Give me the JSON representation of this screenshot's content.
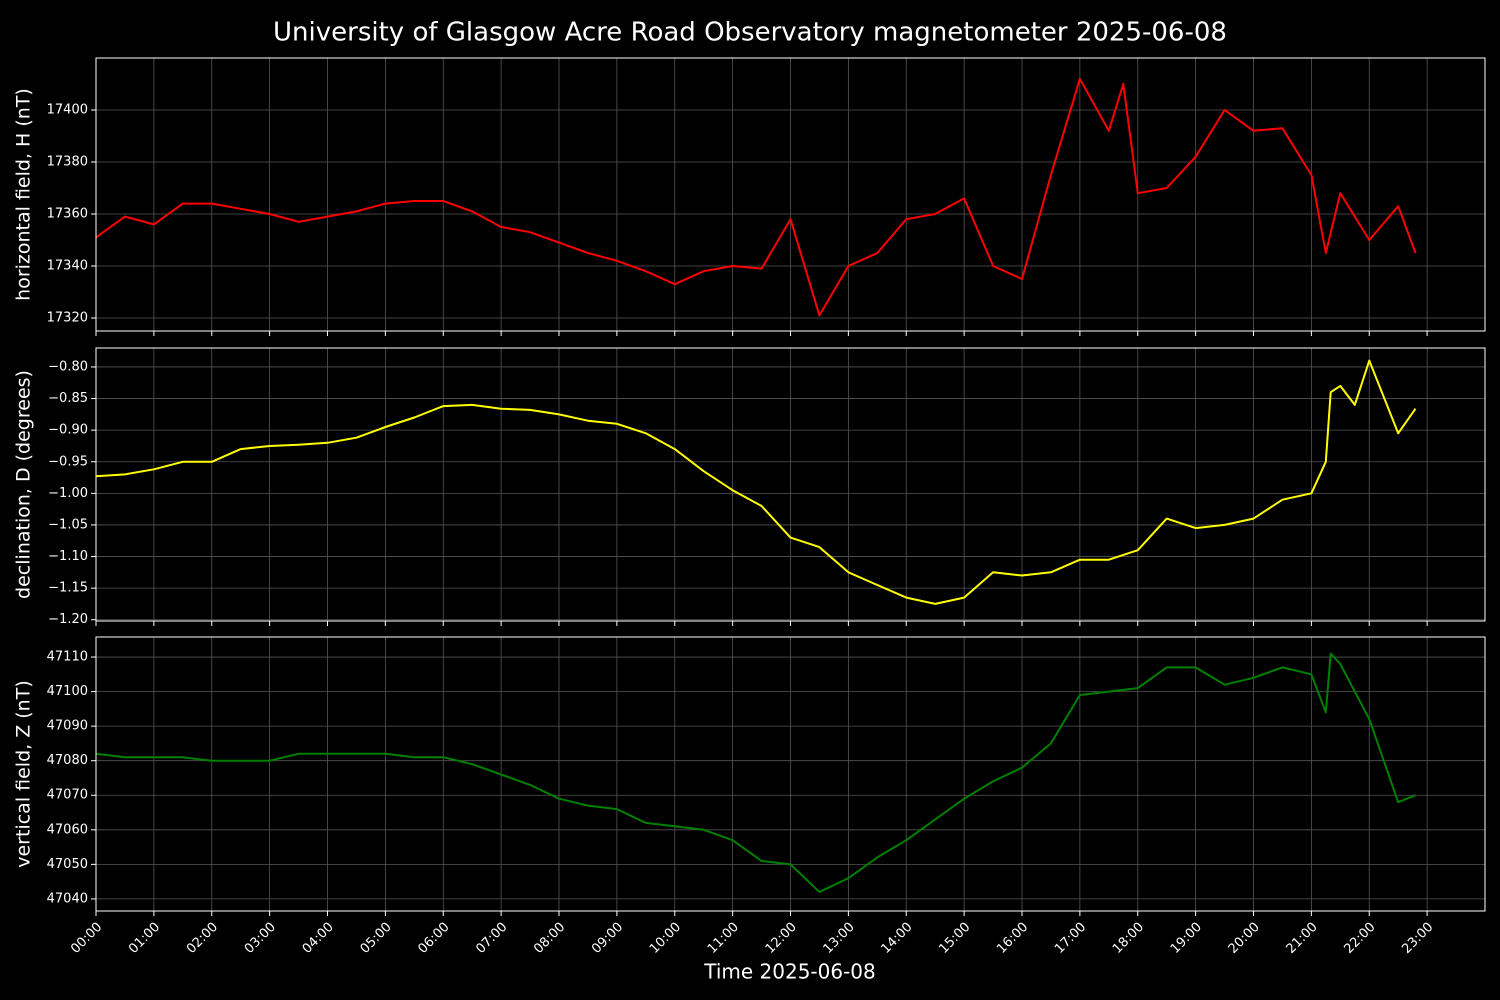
{
  "chart_data": [
    {
      "type": "line",
      "title": "University of Glasgow Acre Road Observatory magnetometer 2025-06-08",
      "ylabel": "horizontal field, H (nT)",
      "color": "#ff0000",
      "grid": true,
      "xlim": [
        "00:00",
        "24:00"
      ],
      "ylim": [
        17315,
        17420
      ],
      "yticks": [
        17320,
        17340,
        17360,
        17380,
        17400
      ],
      "x": [
        "00:00",
        "00:30",
        "01:00",
        "01:30",
        "02:00",
        "02:30",
        "03:00",
        "03:30",
        "04:00",
        "04:30",
        "05:00",
        "05:30",
        "06:00",
        "06:30",
        "07:00",
        "07:30",
        "08:00",
        "08:30",
        "09:00",
        "09:30",
        "10:00",
        "10:30",
        "11:00",
        "11:30",
        "12:00",
        "12:30",
        "13:00",
        "13:30",
        "14:00",
        "14:30",
        "15:00",
        "15:30",
        "16:00",
        "16:30",
        "17:00",
        "17:30",
        "17:45",
        "18:00",
        "18:30",
        "19:00",
        "19:30",
        "20:00",
        "20:30",
        "21:00",
        "21:15",
        "21:30",
        "22:00",
        "22:30",
        "22:48"
      ],
      "values": [
        17351,
        17359,
        17356,
        17364,
        17364,
        17362,
        17360,
        17357,
        17359,
        17361,
        17364,
        17365,
        17365,
        17361,
        17355,
        17353,
        17349,
        17345,
        17342,
        17338,
        17333,
        17338,
        17340,
        17339,
        17358,
        17321,
        17340,
        17345,
        17358,
        17360,
        17366,
        17340,
        17335,
        17375,
        17412,
        17392,
        17410,
        17368,
        17370,
        17382,
        17400,
        17392,
        17393,
        17375,
        17345,
        17368,
        17350,
        17363,
        17345
      ]
    },
    {
      "type": "line",
      "ylabel": "declination, D (degrees)",
      "color": "#ffff00",
      "grid": true,
      "xlim": [
        "00:00",
        "24:00"
      ],
      "ylim": [
        -1.202,
        -0.77
      ],
      "yticks": [
        {
          "value": -1.2,
          "label": "−1.20"
        },
        {
          "value": -1.15,
          "label": "−1.15"
        },
        {
          "value": -1.1,
          "label": "−1.10"
        },
        {
          "value": -1.05,
          "label": "−1.05"
        },
        {
          "value": -1.0,
          "label": "−1.00"
        },
        {
          "value": -0.95,
          "label": "−0.95"
        },
        {
          "value": -0.9,
          "label": "−0.90"
        },
        {
          "value": -0.85,
          "label": "−0.85"
        },
        {
          "value": -0.8,
          "label": "−0.80"
        }
      ],
      "x": [
        "00:00",
        "00:30",
        "01:00",
        "01:30",
        "02:00",
        "02:30",
        "03:00",
        "03:30",
        "04:00",
        "04:30",
        "05:00",
        "05:30",
        "06:00",
        "06:30",
        "07:00",
        "07:30",
        "08:00",
        "08:30",
        "09:00",
        "09:30",
        "10:00",
        "10:30",
        "11:00",
        "11:30",
        "12:00",
        "12:30",
        "13:00",
        "13:30",
        "14:00",
        "14:30",
        "15:00",
        "15:30",
        "16:00",
        "16:30",
        "17:00",
        "17:30",
        "18:00",
        "18:30",
        "19:00",
        "19:30",
        "20:00",
        "20:30",
        "21:00",
        "21:15",
        "21:20",
        "21:30",
        "21:45",
        "22:00",
        "22:30",
        "22:48"
      ],
      "values": [
        -0.973,
        -0.97,
        -0.962,
        -0.95,
        -0.95,
        -0.93,
        -0.925,
        -0.923,
        -0.92,
        -0.912,
        -0.895,
        -0.88,
        -0.862,
        -0.86,
        -0.866,
        -0.868,
        -0.875,
        -0.885,
        -0.89,
        -0.905,
        -0.93,
        -0.965,
        -0.995,
        -1.02,
        -1.07,
        -1.085,
        -1.125,
        -1.145,
        -1.165,
        -1.175,
        -1.165,
        -1.125,
        -1.13,
        -1.125,
        -1.105,
        -1.105,
        -1.09,
        -1.04,
        -1.055,
        -1.05,
        -1.04,
        -1.01,
        -1.0,
        -0.95,
        -0.84,
        -0.83,
        -0.86,
        -0.79,
        -0.905,
        -0.866
      ]
    },
    {
      "type": "line",
      "ylabel": "vertical field, Z (nT)",
      "xlabel": "Time 2025-06-08",
      "color": "#008000",
      "grid": true,
      "xlim": [
        "00:00",
        "24:00"
      ],
      "ylim": [
        47036.5,
        47115.8
      ],
      "yticks": [
        47040,
        47050,
        47060,
        47070,
        47080,
        47090,
        47100,
        47110
      ],
      "xticks": [
        "00:00",
        "01:00",
        "02:00",
        "03:00",
        "04:00",
        "05:00",
        "06:00",
        "07:00",
        "08:00",
        "09:00",
        "10:00",
        "11:00",
        "12:00",
        "13:00",
        "14:00",
        "15:00",
        "16:00",
        "17:00",
        "18:00",
        "19:00",
        "20:00",
        "21:00",
        "22:00",
        "23:00"
      ],
      "x": [
        "00:00",
        "00:30",
        "01:00",
        "01:30",
        "02:00",
        "02:30",
        "03:00",
        "03:30",
        "04:00",
        "04:30",
        "05:00",
        "05:30",
        "06:00",
        "06:30",
        "07:00",
        "07:30",
        "08:00",
        "08:30",
        "09:00",
        "09:30",
        "10:00",
        "10:30",
        "11:00",
        "11:30",
        "12:00",
        "12:30",
        "13:00",
        "13:30",
        "14:00",
        "14:30",
        "15:00",
        "15:30",
        "16:00",
        "16:30",
        "17:00",
        "17:30",
        "18:00",
        "18:30",
        "19:00",
        "19:30",
        "20:00",
        "20:30",
        "21:00",
        "21:15",
        "21:20",
        "21:30",
        "22:00",
        "22:30",
        "22:48"
      ],
      "values": [
        47082,
        47081,
        47081,
        47081,
        47080,
        47080,
        47080,
        47082,
        47082,
        47082,
        47082,
        47081,
        47081,
        47079,
        47076,
        47073,
        47069,
        47067,
        47066,
        47062,
        47061,
        47060,
        47057,
        47051,
        47050,
        47042,
        47046,
        47052,
        47057,
        47063,
        47069,
        47074,
        47078,
        47085,
        47099,
        47100,
        47101,
        47107,
        47107,
        47102,
        47104,
        47107,
        47105,
        47094,
        47111,
        47108,
        47092,
        47068,
        47070
      ]
    }
  ]
}
